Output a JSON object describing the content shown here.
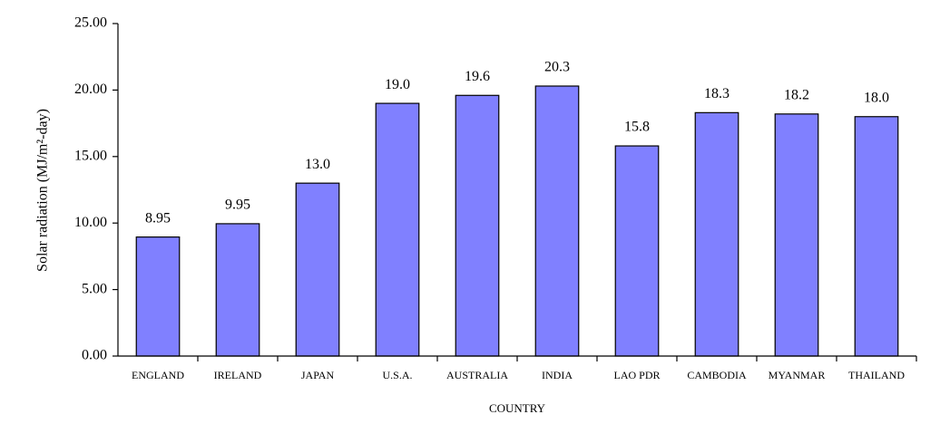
{
  "chart_data": {
    "type": "bar",
    "y_label": "Solar radiation (MJ/m²-day)",
    "x_label": "COUNTRY",
    "categories": [
      "ENGLAND",
      "IRELAND",
      "JAPAN",
      "U.S.A.",
      "AUSTRALIA",
      "INDIA",
      "LAO PDR",
      "CAMBODIA",
      "MYANMAR",
      "THAILAND"
    ],
    "values": [
      8.95,
      9.95,
      13.0,
      19.0,
      19.6,
      20.3,
      15.8,
      18.3,
      18.2,
      18.0
    ],
    "value_labels": [
      "8.95",
      "9.95",
      "13.0",
      "19.0",
      "19.6",
      "20.3",
      "15.8",
      "18.3",
      "18.2",
      "18.0"
    ],
    "color": "#8080ff",
    "ylim": [
      0,
      25
    ],
    "yticks": [
      {
        "value": 0,
        "label": "0.00"
      },
      {
        "value": 5,
        "label": "5.00"
      },
      {
        "value": 10,
        "label": "10.00"
      },
      {
        "value": 15,
        "label": "15.00"
      },
      {
        "value": 20,
        "label": "20.00"
      },
      {
        "value": 25,
        "label": "25.00"
      }
    ],
    "grid": false
  }
}
